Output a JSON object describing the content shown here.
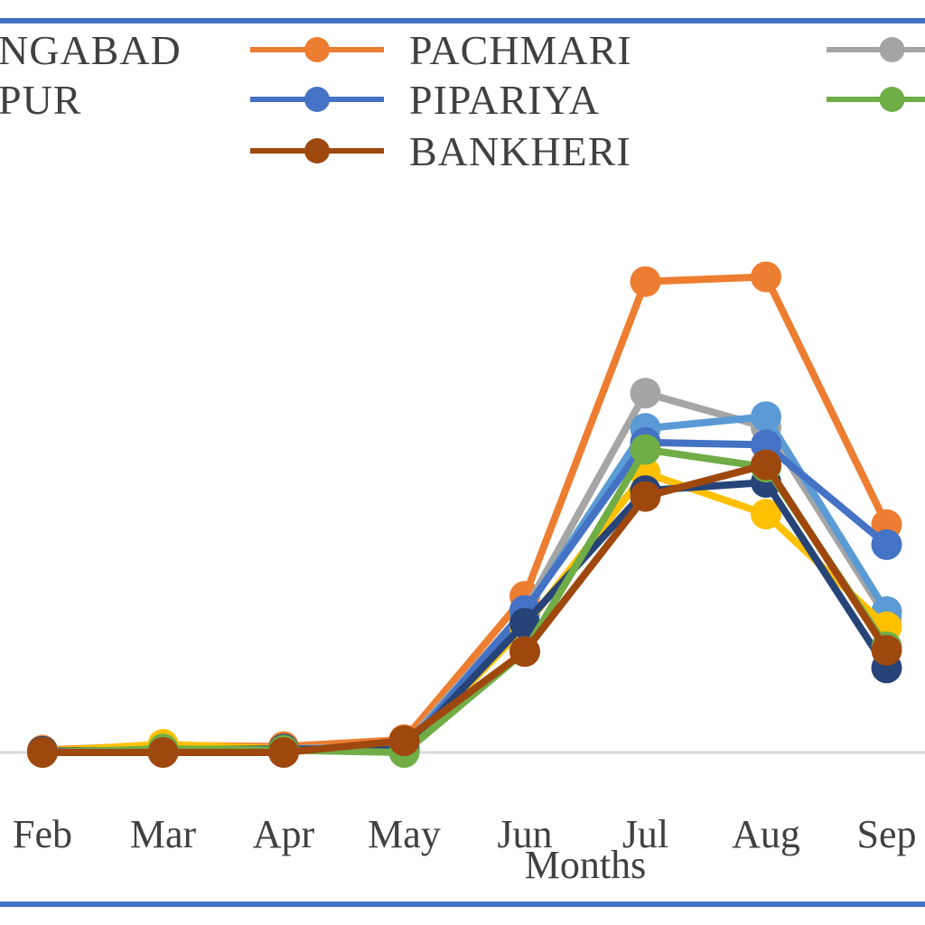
{
  "chart_data": {
    "type": "line",
    "title": "",
    "xlabel": "Months",
    "ylabel": "",
    "categories": [
      "Feb",
      "Mar",
      "Apr",
      "May",
      "Jun",
      "Jul",
      "Aug",
      "Sep"
    ],
    "grid": false,
    "legend_position": "top",
    "series": [
      {
        "name": "PACHMARI",
        "color": "#ED7D31",
        "values": [
          2,
          6,
          5,
          11,
          133,
          401,
          405,
          194
        ]
      },
      {
        "name": "",
        "color": "#A5A5A5",
        "values": [
          1,
          3,
          3,
          6,
          121,
          306,
          277,
          115
        ]
      },
      {
        "name": "",
        "color": "#5B9BD5",
        "values": [
          1,
          3,
          3,
          4,
          119,
          276,
          286,
          120
        ]
      },
      {
        "name": "PIPARIYA",
        "color": "#4472C4",
        "values": [
          1,
          3,
          3,
          2,
          121,
          264,
          262,
          177
        ]
      },
      {
        "name": "",
        "color": "#FFC000",
        "values": [
          1,
          7,
          3,
          1,
          107,
          238,
          203,
          107
        ]
      },
      {
        "name": "",
        "color": "#264478",
        "values": [
          1,
          2,
          3,
          2,
          110,
          223,
          230,
          72
        ]
      },
      {
        "name": "",
        "color": "#70AD47",
        "values": [
          0,
          3,
          2,
          0,
          86,
          258,
          243,
          90
        ]
      },
      {
        "name": "BANKHERI",
        "color": "#9E480E",
        "values": [
          0,
          0,
          0,
          10,
          86,
          218,
          245,
          87
        ]
      }
    ],
    "legend": [
      {
        "label": "NGABAD",
        "color": "#FFC000"
      },
      {
        "label": "PUR",
        "color": "#264478"
      },
      {
        "label": "PACHMARI",
        "color": "#ED7D31"
      },
      {
        "label": "PIPARIYA",
        "color": "#4472C4"
      },
      {
        "label": "BANKHERI",
        "color": "#9E480E"
      },
      {
        "label": "",
        "color": "#A5A5A5"
      },
      {
        "label": "",
        "color": "#70AD47"
      }
    ]
  },
  "frame_color": "#4472C4",
  "axis_color": "#D9D9D9"
}
